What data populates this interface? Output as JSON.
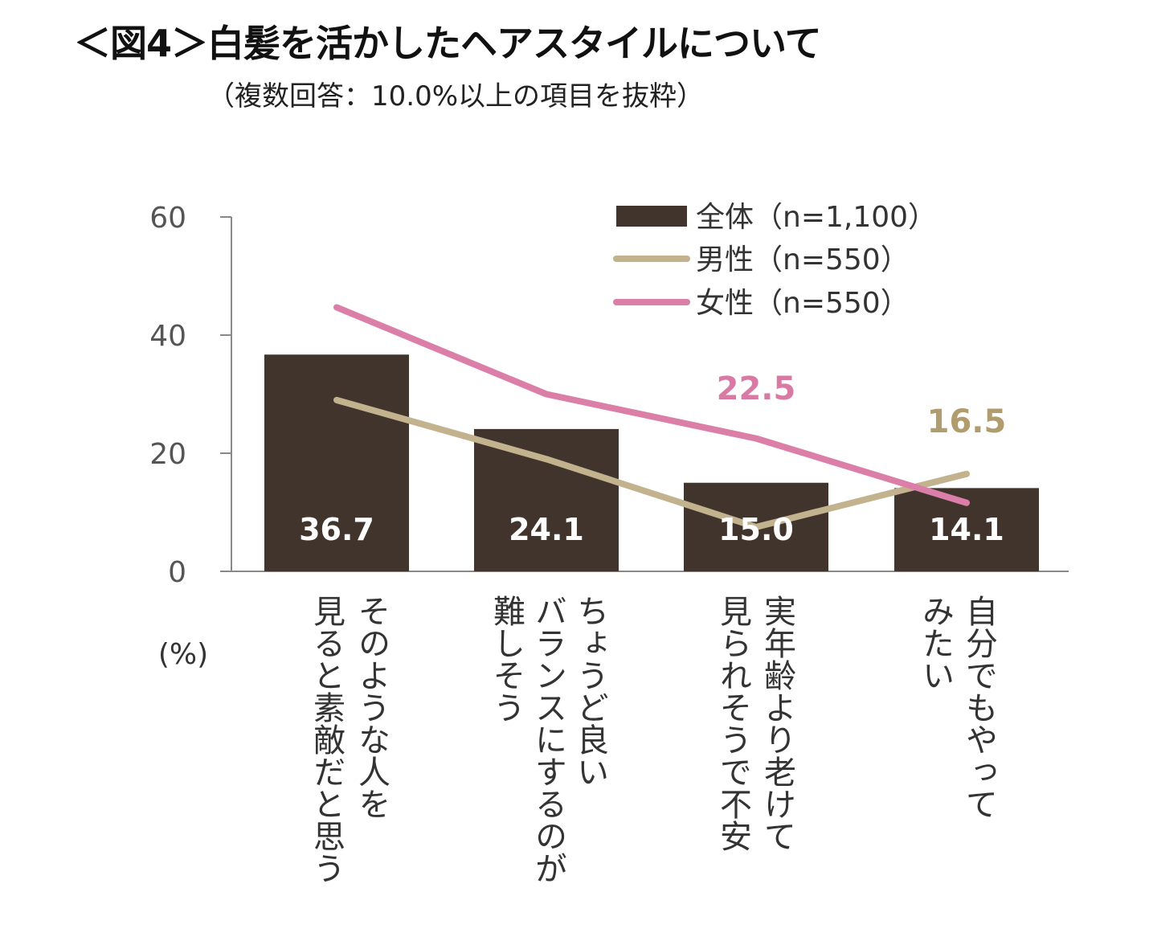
{
  "header": {
    "title": "＜図4＞白髪を活かしたヘアスタイルについて",
    "subtitle": "（複数回答：10.0%以上の項目を抜粋）"
  },
  "colors": {
    "bar": "#40342c",
    "male": "#c2b38e",
    "female": "#db7fa8",
    "axis": "#888888",
    "male_label": "#b09c6c",
    "female_label": "#d97aa5"
  },
  "chart_data": {
    "type": "bar",
    "title": "＜図4＞白髪を活かしたヘアスタイルについて",
    "subtitle": "（複数回答：10.0%以上の項目を抜粋）",
    "ylabel": "(%)",
    "ylim": [
      0,
      60
    ],
    "yticks": [
      0,
      20,
      40,
      60
    ],
    "categories": [
      "そのような人を見ると素敵だと思う",
      "ちょうど良いバランスにするのが難しそう",
      "実年齢より老けて見られそうで不安",
      "自分でもやってみたい"
    ],
    "category_lines": [
      [
        "そのような人を",
        "見ると素敵だと思う"
      ],
      [
        "ちょうど良い",
        "バランスにするのが",
        "難しそう"
      ],
      [
        "実年齢より老けて",
        "見られそうで不安"
      ],
      [
        "自分でもやって",
        "みたい"
      ]
    ],
    "series": [
      {
        "name": "全体（n=1,100）",
        "type": "bar",
        "values": [
          36.7,
          24.1,
          15.0,
          14.1
        ],
        "labels": [
          "36.7",
          "24.1",
          "15.0",
          "14.1"
        ]
      },
      {
        "name": "男性（n=550）",
        "type": "line",
        "values": [
          29.0,
          19.0,
          7.5,
          16.5
        ]
      },
      {
        "name": "女性（n=550）",
        "type": "line",
        "values": [
          44.7,
          30.0,
          22.5,
          11.6
        ]
      }
    ],
    "annotations": [
      {
        "series": "女性（n=550）",
        "index": 2,
        "text": "22.5"
      },
      {
        "series": "男性（n=550）",
        "index": 3,
        "text": "16.5"
      }
    ],
    "legend_position": "top-right"
  }
}
